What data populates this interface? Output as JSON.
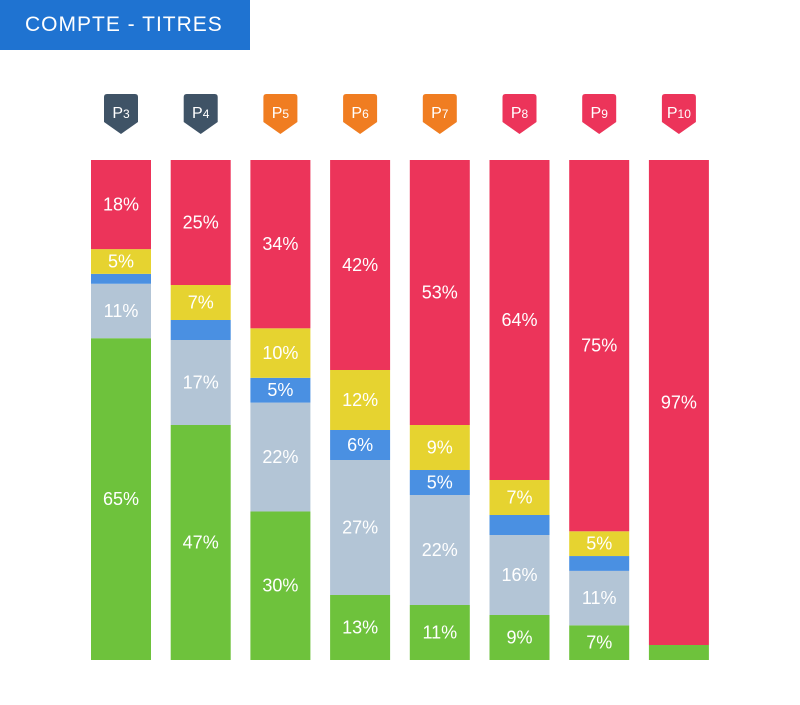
{
  "title": "COMPTE - TITRES",
  "colors": {
    "banner": "#1f73d1",
    "dark": "#3f5366",
    "orange": "#f07d21",
    "red": "#ec345a",
    "yellow": "#e6d330",
    "blue": "#4a90e2",
    "grey": "#b3c5d6",
    "green": "#6ec23c"
  },
  "chart_data": {
    "type": "bar",
    "stacked": true,
    "categories": [
      "P3",
      "P4",
      "P5",
      "P6",
      "P7",
      "P8",
      "P9",
      "P10"
    ],
    "badge_colors": [
      "dark",
      "dark",
      "orange",
      "orange",
      "orange",
      "red",
      "red",
      "red"
    ],
    "series": [
      {
        "name": "green",
        "color": "green",
        "values": [
          65,
          47,
          30,
          13,
          11,
          9,
          7,
          3
        ]
      },
      {
        "name": "grey",
        "color": "grey",
        "values": [
          11,
          17,
          22,
          27,
          22,
          16,
          11,
          0
        ]
      },
      {
        "name": "blue",
        "color": "blue",
        "values": [
          2,
          4,
          5,
          6,
          5,
          4,
          3,
          0
        ]
      },
      {
        "name": "yellow",
        "color": "yellow",
        "values": [
          5,
          7,
          10,
          12,
          9,
          7,
          5,
          0
        ]
      },
      {
        "name": "red",
        "color": "red",
        "values": [
          18,
          25,
          34,
          42,
          53,
          64,
          75,
          97
        ]
      }
    ],
    "labels": [
      {
        "series": "green",
        "values": [
          "65%",
          "47%",
          "30%",
          "13%",
          "11%",
          "9%",
          "7%",
          ""
        ]
      },
      {
        "series": "grey",
        "values": [
          "11%",
          "17%",
          "22%",
          "27%",
          "22%",
          "16%",
          "11%",
          ""
        ]
      },
      {
        "series": "blue",
        "values": [
          "",
          "",
          "5%",
          "6%",
          "5%",
          "",
          "",
          ""
        ]
      },
      {
        "series": "yellow",
        "values": [
          "5%",
          "7%",
          "10%",
          "12%",
          "9%",
          "7%",
          "5%",
          ""
        ]
      },
      {
        "series": "red",
        "values": [
          "18%",
          "25%",
          "34%",
          "42%",
          "53%",
          "64%",
          "75%",
          "97%"
        ]
      }
    ]
  }
}
